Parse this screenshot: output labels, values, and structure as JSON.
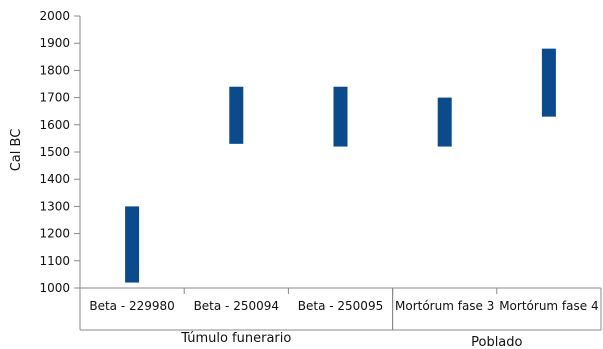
{
  "chart_data": {
    "type": "bar",
    "subtype": "floating-range",
    "ylabel": "Cal BC",
    "ylim": [
      1000,
      2000
    ],
    "ytick_step": 100,
    "yticks": [
      "1000",
      "1100",
      "1200",
      "1300",
      "1400",
      "1500",
      "1600",
      "1700",
      "1800",
      "1900",
      "2000"
    ],
    "categories": [
      "Beta - 229980",
      "Beta - 250094",
      "Beta - 250095",
      "Mortórum fase 3",
      "Mortórum fase 4"
    ],
    "ranges": [
      [
        1020,
        1300
      ],
      [
        1530,
        1740
      ],
      [
        1520,
        1740
      ],
      [
        1520,
        1700
      ],
      [
        1630,
        1880
      ]
    ],
    "groups": [
      {
        "label": "Túmulo funerario",
        "categories": [
          "Beta - 229980",
          "Beta - 250094",
          "Beta - 250095"
        ]
      },
      {
        "label": "Poblado",
        "categories": [
          "Mortórum fase 3",
          "Mortórum fase 4"
        ]
      }
    ],
    "grid": false,
    "bar_color": "#0b4a8b"
  }
}
